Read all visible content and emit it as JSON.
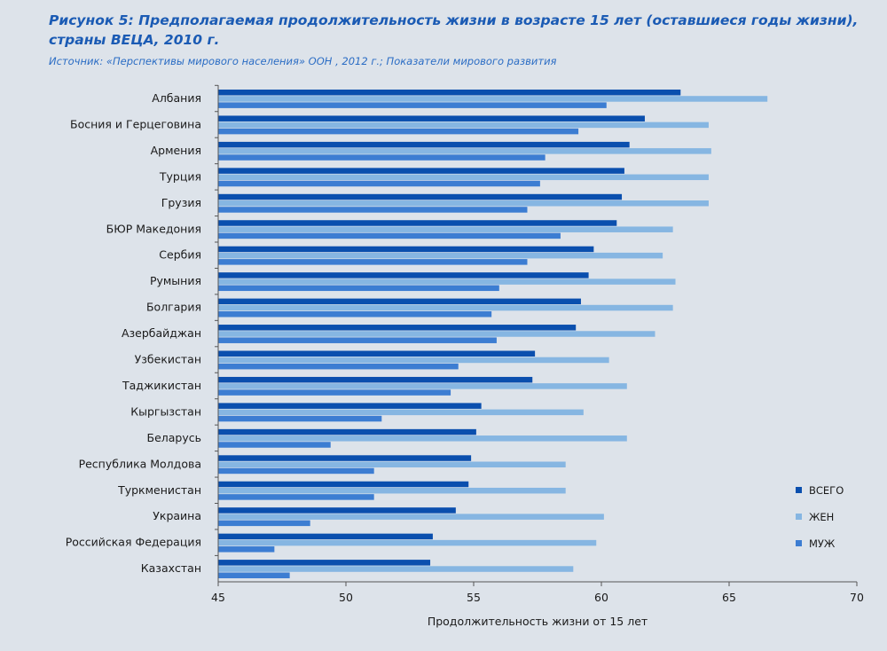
{
  "chart_data": {
    "type": "bar",
    "orientation": "horizontal",
    "title": "Рисунок 5: Предполагаемая продолжительность жизни в возрасте 15 лет (оставшиеся годы жизни), страны ВЕЦА, 2010 г.",
    "subtitle": "Источник: «Перспективы мирового населения» ООН , 2012 г.; Показатели мирового развития",
    "xlabel": "Продолжительность жизни от 15 лет",
    "ylabel": "",
    "xlim": [
      45,
      70
    ],
    "xticks": [
      "45",
      "50",
      "55",
      "60",
      "65",
      "70"
    ],
    "grid": false,
    "legend_position": "right",
    "categories": [
      "Албания",
      "Босния и Герцеговина",
      "Армения",
      "Турция",
      "Грузия",
      "БЮР Македония",
      "Сербия",
      "Румыния",
      "Болгария",
      "Азербайджан",
      "Узбекистан",
      "Таджикистан",
      "Кыргызстан",
      "Беларусь",
      "Республика Молдова",
      "Туркменистан",
      "Украина",
      "Российская Федерация",
      "Казахстан"
    ],
    "series": [
      {
        "name": "ВСЕГО",
        "color": "#0a4fae",
        "values": [
          63.1,
          61.7,
          61.1,
          60.9,
          60.8,
          60.6,
          59.7,
          59.5,
          59.2,
          59.0,
          57.4,
          57.3,
          55.3,
          55.1,
          54.9,
          54.8,
          54.3,
          53.4,
          53.3
        ]
      },
      {
        "name": "ЖЕН",
        "color": "#86b6e2",
        "values": [
          66.5,
          64.2,
          64.3,
          64.2,
          64.2,
          62.8,
          62.4,
          62.9,
          62.8,
          62.1,
          60.3,
          61.0,
          59.3,
          61.0,
          58.6,
          58.6,
          60.1,
          59.8,
          58.9
        ]
      },
      {
        "name": "МУЖ",
        "color": "#3c7dd2",
        "values": [
          60.2,
          59.1,
          57.8,
          57.6,
          57.1,
          58.4,
          57.1,
          56.0,
          55.7,
          55.9,
          54.4,
          54.1,
          51.4,
          49.4,
          51.1,
          51.1,
          48.6,
          47.2,
          47.8
        ]
      }
    ]
  }
}
